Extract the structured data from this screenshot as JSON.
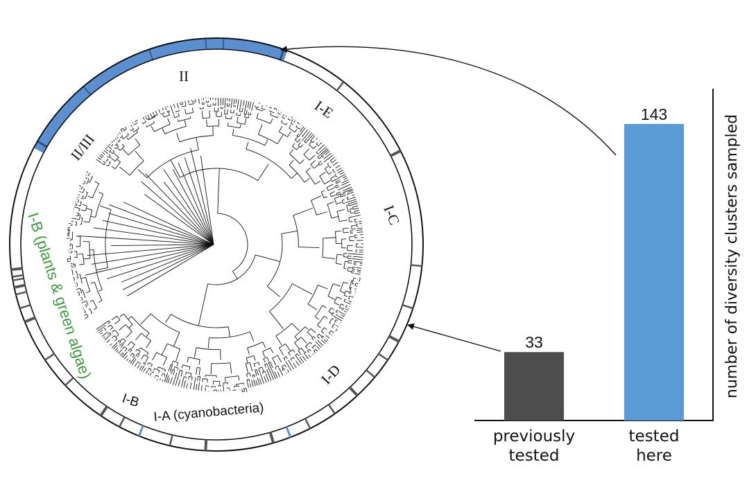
{
  "chart_data": [
    {
      "type": "tree",
      "clade_labels": {
        "ii": "II",
        "ii_iii": "II/III",
        "i_e": "I-E",
        "i_c": "I-C",
        "i_d": "I-D",
        "i_b_small": "I-B",
        "i_a": "I-A (cyanobacteria)",
        "i_b_plants": "I-B (plants & green algae)"
      },
      "colors": {
        "highlight_band": "#5b8fcf",
        "marker_dark": "#555555",
        "plants_label": "#3c9a3c",
        "tree_line": "#111111"
      }
    },
    {
      "type": "bar",
      "categories": [
        [
          "previously",
          "tested"
        ],
        [
          "tested",
          "here"
        ]
      ],
      "values": [
        33,
        143
      ],
      "value_labels": [
        "33",
        "143"
      ],
      "ylabel": "number of diversity clusters sampled",
      "xlabel": "",
      "ylim": [
        0,
        160
      ],
      "colors": [
        "#4d4d4d",
        "#5b9bd5"
      ]
    }
  ]
}
